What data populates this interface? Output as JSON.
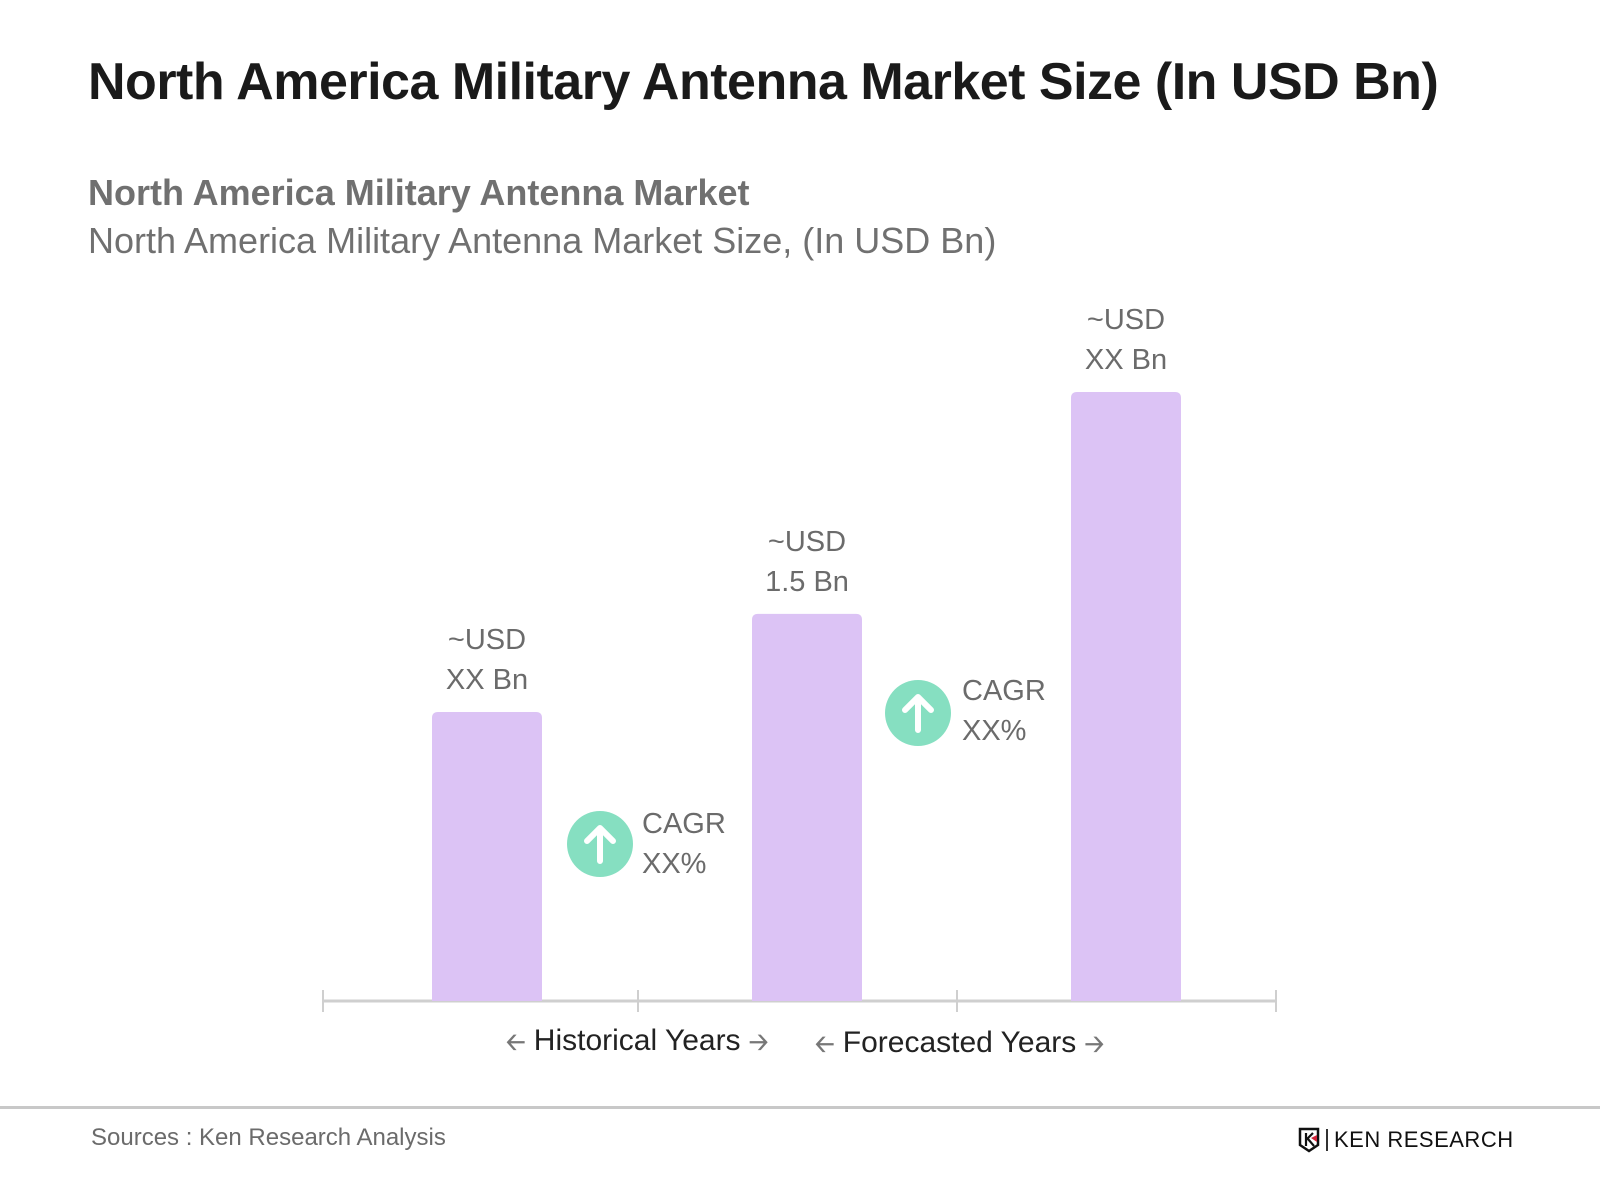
{
  "title": "North America Military Antenna Market Size (In USD Bn)",
  "subtitle": "North America Military Antenna Market",
  "subtitle2": "North America Military Antenna Market Size, (In USD Bn)",
  "chart_data": {
    "type": "bar",
    "categories": [
      "",
      "",
      ""
    ],
    "values": [
      1.12,
      1.5,
      2.36
    ],
    "data_labels": [
      {
        "line1": "~USD",
        "line2": "XX Bn"
      },
      {
        "line1": "~USD",
        "line2": "1.5 Bn"
      },
      {
        "line1": "~USD",
        "line2": "XX Bn"
      }
    ],
    "bar_color": "#dcc3f5",
    "cagr": [
      {
        "label": "CAGR",
        "value": "XX%"
      },
      {
        "label": "CAGR",
        "value": "XX%"
      }
    ],
    "cagr_color": "#86dfc1",
    "x_groups": [
      "Historical Years",
      "Forecasted Years"
    ],
    "ylim": [
      0,
      2.6
    ],
    "grid": false
  },
  "footer": {
    "sources": "Sources : Ken Research Analysis",
    "logo": "KEN RESEARCH"
  }
}
